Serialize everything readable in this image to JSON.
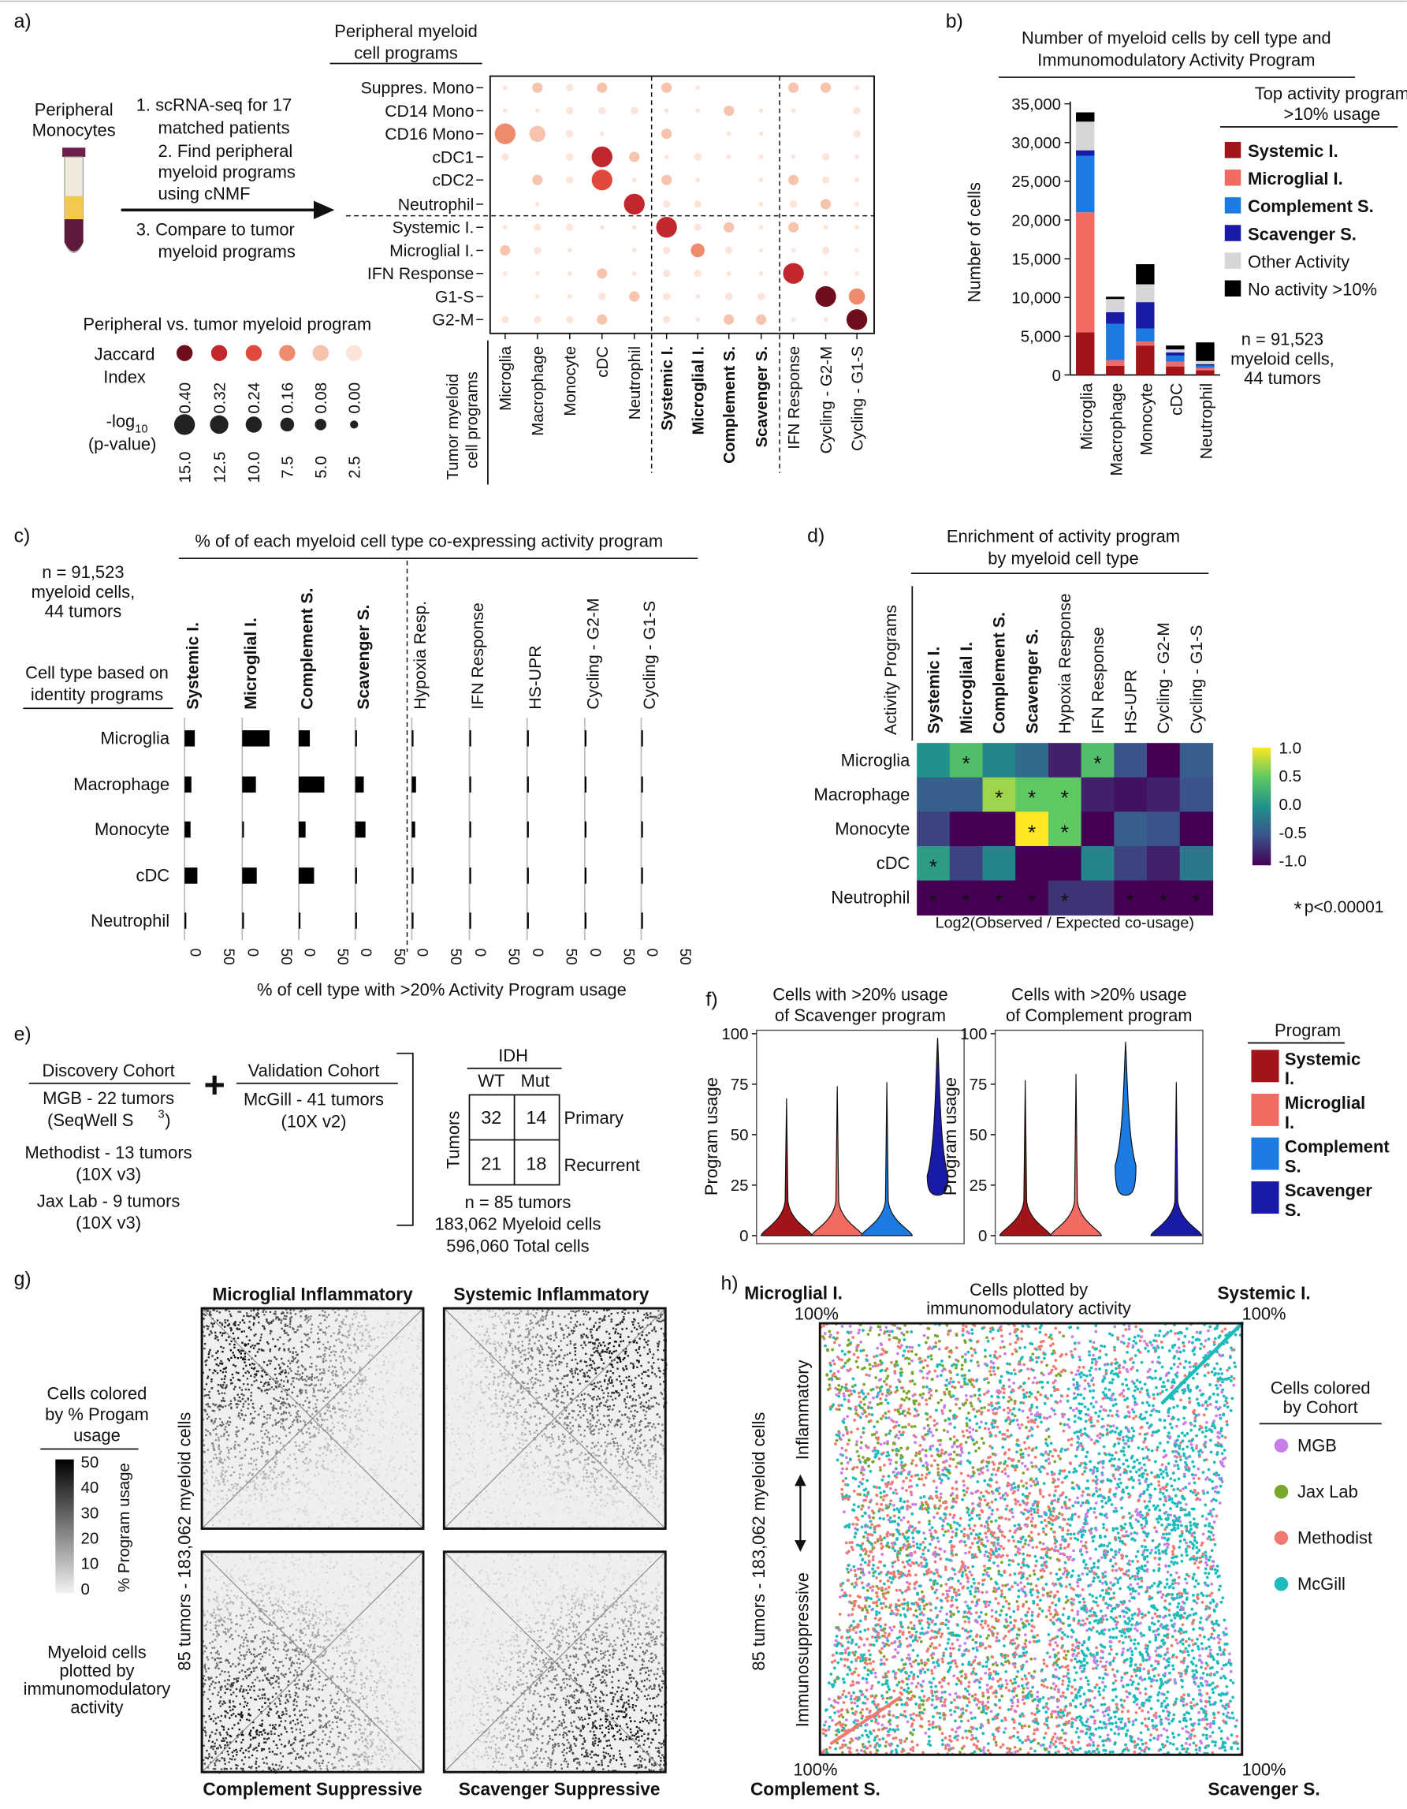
{
  "panel_labels": {
    "a": "a)",
    "b": "b)",
    "c": "c)",
    "d": "d)",
    "e": "e)",
    "f": "f)",
    "g": "g)",
    "h": "h)"
  },
  "panel_a": {
    "source_label": [
      "Peripheral",
      "Monocytes"
    ],
    "steps": [
      "1. scRNA-seq for 17",
      "matched patients",
      "2. Find peripheral",
      "myeloid programs",
      "using cNMF",
      "3. Compare to tumor",
      "myeloid programs"
    ],
    "row_header": [
      "Peripheral myeloid",
      "cell programs"
    ],
    "rows": [
      "Suppres. Mono",
      "CD14 Mono",
      "CD16 Mono",
      "cDC1",
      "cDC2",
      "Neutrophil",
      "Systemic I.",
      "Microglial I.",
      "IFN Response",
      "G1-S",
      "G2-M"
    ],
    "col_header": [
      "Tumor myeloid",
      "cell programs"
    ],
    "cols": [
      "Microglia",
      "Macrophage",
      "Monocyte",
      "cDC",
      "Neutrophil",
      "Systemic I.",
      "Microglial I.",
      "Complement S.",
      "Scavenger S.",
      "IFN Response",
      "Cycling - G2-M",
      "Cycling - G1-S"
    ],
    "bold_cols": [
      "Systemic I.",
      "Microglial I.",
      "Complement S.",
      "Scavenger S."
    ],
    "legend_title": "Peripheral vs. tumor myeloid program",
    "jaccard_label": [
      "Jaccard",
      "Index"
    ],
    "jaccard_values": [
      "0.40",
      "0.32",
      "0.24",
      "0.16",
      "0.08",
      "0.00"
    ],
    "jaccard_colors": [
      "#6e0e1c",
      "#c1272d",
      "#e04a3c",
      "#ee8a6e",
      "#f6c3ad",
      "#fde4d8"
    ],
    "pval_label": [
      "-log",
      "10",
      "(p-value)"
    ],
    "pval_values": [
      "15.0",
      "12.5",
      "10.0",
      "7.5",
      "5.0",
      "2.5"
    ]
  },
  "chart_data": [
    {
      "id": "b",
      "type": "bar",
      "title": "Number of myeloid cells by cell type and Immunomodulatory Activity Program",
      "title_lines": [
        "Number of myeloid cells by cell type and",
        "Immunomodulatory Activity Program"
      ],
      "ylabel": "Number of cells",
      "ylim": [
        0,
        35000
      ],
      "yticks": [
        "35,000",
        "30,000",
        "25,000",
        "20,000",
        "15,000",
        "10,000",
        "5,000",
        "0"
      ],
      "categories": [
        "Microglia",
        "Macrophage",
        "Monocyte",
        "cDC",
        "Neutrophil"
      ],
      "stacked": true,
      "series": [
        {
          "name": "Systemic I.",
          "color": "#a31419",
          "values": [
            5500,
            1200,
            3800,
            1100,
            600
          ]
        },
        {
          "name": "Microglial I.",
          "color": "#f26b63",
          "values": [
            15500,
            700,
            500,
            600,
            300
          ]
        },
        {
          "name": "Complement S.",
          "color": "#1b7be0",
          "values": [
            7300,
            4700,
            1700,
            800,
            300
          ]
        },
        {
          "name": "Scavenger S.",
          "color": "#1a1aa8",
          "values": [
            700,
            1500,
            3400,
            400,
            200
          ]
        },
        {
          "name": "Other Activity",
          "color": "#d6d6d6",
          "values": [
            3700,
            1700,
            2300,
            400,
            400
          ]
        },
        {
          "name": "No activity >10%",
          "color": "#000000",
          "values": [
            1200,
            300,
            2600,
            500,
            2400
          ]
        }
      ],
      "legend_title": [
        "Top activity program",
        ">10% usage"
      ],
      "legend_bold": [
        "Systemic I.",
        "Microglial I.",
        "Complement S.",
        "Scavenger S."
      ],
      "note": [
        "n =  91,523",
        "myeloid cells,",
        "44 tumors"
      ]
    },
    {
      "id": "c",
      "type": "bar",
      "title": "% of of each myeloid cell type co-expressing activity program",
      "xlabel": "% of cell type with >20% Activity Program usage",
      "xlim": [
        0,
        50
      ],
      "xticks": [
        "0",
        "50"
      ],
      "categories": [
        "Microglia",
        "Macrophage",
        "Monocyte",
        "cDC",
        "Neutrophil"
      ],
      "series": [
        {
          "name": "Systemic I.",
          "bold": true,
          "values": [
            12,
            8,
            7,
            15,
            2
          ]
        },
        {
          "name": "Microglial I.",
          "bold": true,
          "values": [
            32,
            16,
            1,
            17,
            2
          ]
        },
        {
          "name": "Complement S.",
          "bold": true,
          "values": [
            13,
            30,
            8,
            18,
            1
          ]
        },
        {
          "name": "Scavenger S.",
          "bold": true,
          "values": [
            1,
            10,
            12,
            1,
            0
          ]
        },
        {
          "name": "Hypoxia Resp.",
          "bold": false,
          "values": [
            2,
            5,
            4,
            0,
            0
          ]
        },
        {
          "name": "IFN Response",
          "bold": false,
          "values": [
            2,
            0,
            0,
            0,
            0
          ]
        },
        {
          "name": "HS-UPR",
          "bold": false,
          "values": [
            0,
            0,
            0,
            0,
            0
          ]
        },
        {
          "name": "Cycling - G2-M",
          "bold": false,
          "values": [
            0,
            0,
            0,
            0,
            0
          ]
        },
        {
          "name": "Cycling - G1-S",
          "bold": false,
          "values": [
            1,
            0,
            0,
            1,
            0
          ]
        }
      ],
      "note": [
        "n =  91,523",
        "myeloid cells,",
        "44 tumors"
      ],
      "rowhead": [
        "Cell type based on",
        "identity programs"
      ]
    },
    {
      "id": "d",
      "type": "heatmap",
      "title": "Enrichment of activity program by myeloid cell type",
      "title_lines": [
        "Enrichment of activity program",
        "by myeloid cell type"
      ],
      "ylabel": "Activity Programs",
      "xlabel": "Log2(Observed / Expected co-usage)",
      "columns": [
        "Systemic I.",
        "Microglial I.",
        "Complement S.",
        "Scavenger S.",
        "Hypoxia Response",
        "IFN Response",
        "HS-UPR",
        "Cycling - G2-M",
        "Cycling - G1-S"
      ],
      "bold_columns": [
        "Systemic I.",
        "Microglial I.",
        "Complement S.",
        "Scavenger S."
      ],
      "rows": [
        "Microglia",
        "Macrophage",
        "Monocyte",
        "cDC",
        "Neutrophil"
      ],
      "values": [
        [
          0.0,
          0.4,
          -0.1,
          -0.3,
          -0.8,
          0.4,
          -0.5,
          -1.0,
          -0.4
        ],
        [
          -0.4,
          -0.4,
          0.7,
          0.5,
          0.5,
          -0.8,
          -0.9,
          -0.8,
          -0.5
        ],
        [
          -0.6,
          -1.0,
          -1.0,
          1.0,
          0.5,
          -1.0,
          -0.4,
          -0.5,
          -1.0
        ],
        [
          0.1,
          -0.6,
          -0.1,
          -1.0,
          -1.0,
          -0.1,
          -0.6,
          -0.8,
          -0.2
        ],
        [
          -1.0,
          -1.0,
          -1.0,
          -1.0,
          -0.7,
          -0.7,
          -1.0,
          -1.0,
          -1.0
        ]
      ],
      "significant": [
        [
          false,
          true,
          false,
          false,
          false,
          true,
          false,
          false,
          false
        ],
        [
          false,
          false,
          true,
          true,
          true,
          false,
          false,
          false,
          false
        ],
        [
          false,
          false,
          false,
          true,
          true,
          false,
          false,
          false,
          false
        ],
        [
          true,
          false,
          false,
          false,
          false,
          false,
          false,
          false,
          false
        ],
        [
          true,
          true,
          true,
          true,
          true,
          false,
          true,
          true,
          true
        ]
      ],
      "colorbar_ticks": [
        "1.0",
        "0.5",
        "0.0",
        "-0.5",
        "-1.0"
      ],
      "pnote": "p<0.00001"
    },
    {
      "id": "f",
      "type": "violin",
      "panels": [
        {
          "title": [
            "Cells with >20% usage",
            "of Scavenger program"
          ],
          "medians": [
            3,
            2,
            5,
            32
          ],
          "maxes": [
            68,
            74,
            76,
            98
          ]
        },
        {
          "title": [
            "Cells with >20% usage",
            "of Complement program"
          ],
          "medians": [
            3,
            3,
            37,
            3
          ],
          "maxes": [
            77,
            80,
            96,
            76
          ]
        }
      ],
      "ylabel": "Program usage",
      "ylim": [
        0,
        100
      ],
      "yticks": [
        "100",
        "75",
        "50",
        "25",
        "0"
      ],
      "legend_title": "Program",
      "series": [
        {
          "name": "Systemic I.",
          "lines": [
            "Systemic",
            "I."
          ],
          "color": "#a31419"
        },
        {
          "name": "Microglial I.",
          "lines": [
            "Microglial",
            "I."
          ],
          "color": "#f26b63"
        },
        {
          "name": "Complement S.",
          "lines": [
            "Complement",
            "S."
          ],
          "color": "#1b7be0"
        },
        {
          "name": "Scavenger S.",
          "lines": [
            "Scavenger",
            "S."
          ],
          "color": "#1a1aa8"
        }
      ]
    },
    {
      "id": "g",
      "type": "scatter",
      "facets": [
        "Microglial Inflammatory",
        "Systemic Inflammatory",
        "Complement Suppressive",
        "Scavenger Suppressive"
      ],
      "ylabel": "85 tumors - 183,062 myeloid cells",
      "colorbar_ticks": [
        "50",
        "40",
        "30",
        "20",
        "10",
        "0"
      ],
      "colorbar_label": "% Program usage",
      "legend_title": [
        "Cells colored",
        "by % Progam",
        "usage"
      ],
      "caption": [
        "Myeloid cells",
        "plotted by",
        "immunomodulatory",
        "activity"
      ]
    },
    {
      "id": "h",
      "type": "scatter",
      "title": [
        "Cells plotted by",
        "immunomodulatory activity"
      ],
      "corners": {
        "tl": "Microglial I.",
        "tr": "Systemic I.",
        "bl": "Complement S.",
        "br": "Scavenger S.",
        "pct": "100%"
      },
      "ylabel": "85 tumors - 183,062 myeloid cells",
      "axis_top": "Inflammatory",
      "axis_bottom": "Immunosuppressive",
      "legend_title": [
        "Cells colored",
        "by Cohort"
      ],
      "series": [
        {
          "name": "MGB",
          "color": "#c77ee8"
        },
        {
          "name": "Jax Lab",
          "color": "#7aa72a"
        },
        {
          "name": "Methodist",
          "color": "#f07a70"
        },
        {
          "name": "McGill",
          "color": "#1cbcbc"
        }
      ]
    }
  ],
  "panel_e": {
    "discovery_title": "Discovery Cohort",
    "discovery": [
      "MGB - 22 tumors",
      "(SeqWell S",
      "3",
      ")",
      "Methodist - 13 tumors",
      "(10X v3)",
      "Jax Lab - 9 tumors",
      "(10X v3)"
    ],
    "validation_title": "Validation Cohort",
    "validation": [
      "McGill - 41 tumors",
      "(10X v2)"
    ],
    "idh": "IDH",
    "cols": [
      "WT",
      "Mut"
    ],
    "rowlabel": "Tumors",
    "rows": [
      "Primary",
      "Recurrent"
    ],
    "cells": [
      "32",
      "14",
      "21",
      "18"
    ],
    "totals": [
      "n = 85 tumors",
      "183,062 Myeloid cells",
      "596,060 Total cells"
    ],
    "plus": "+"
  }
}
